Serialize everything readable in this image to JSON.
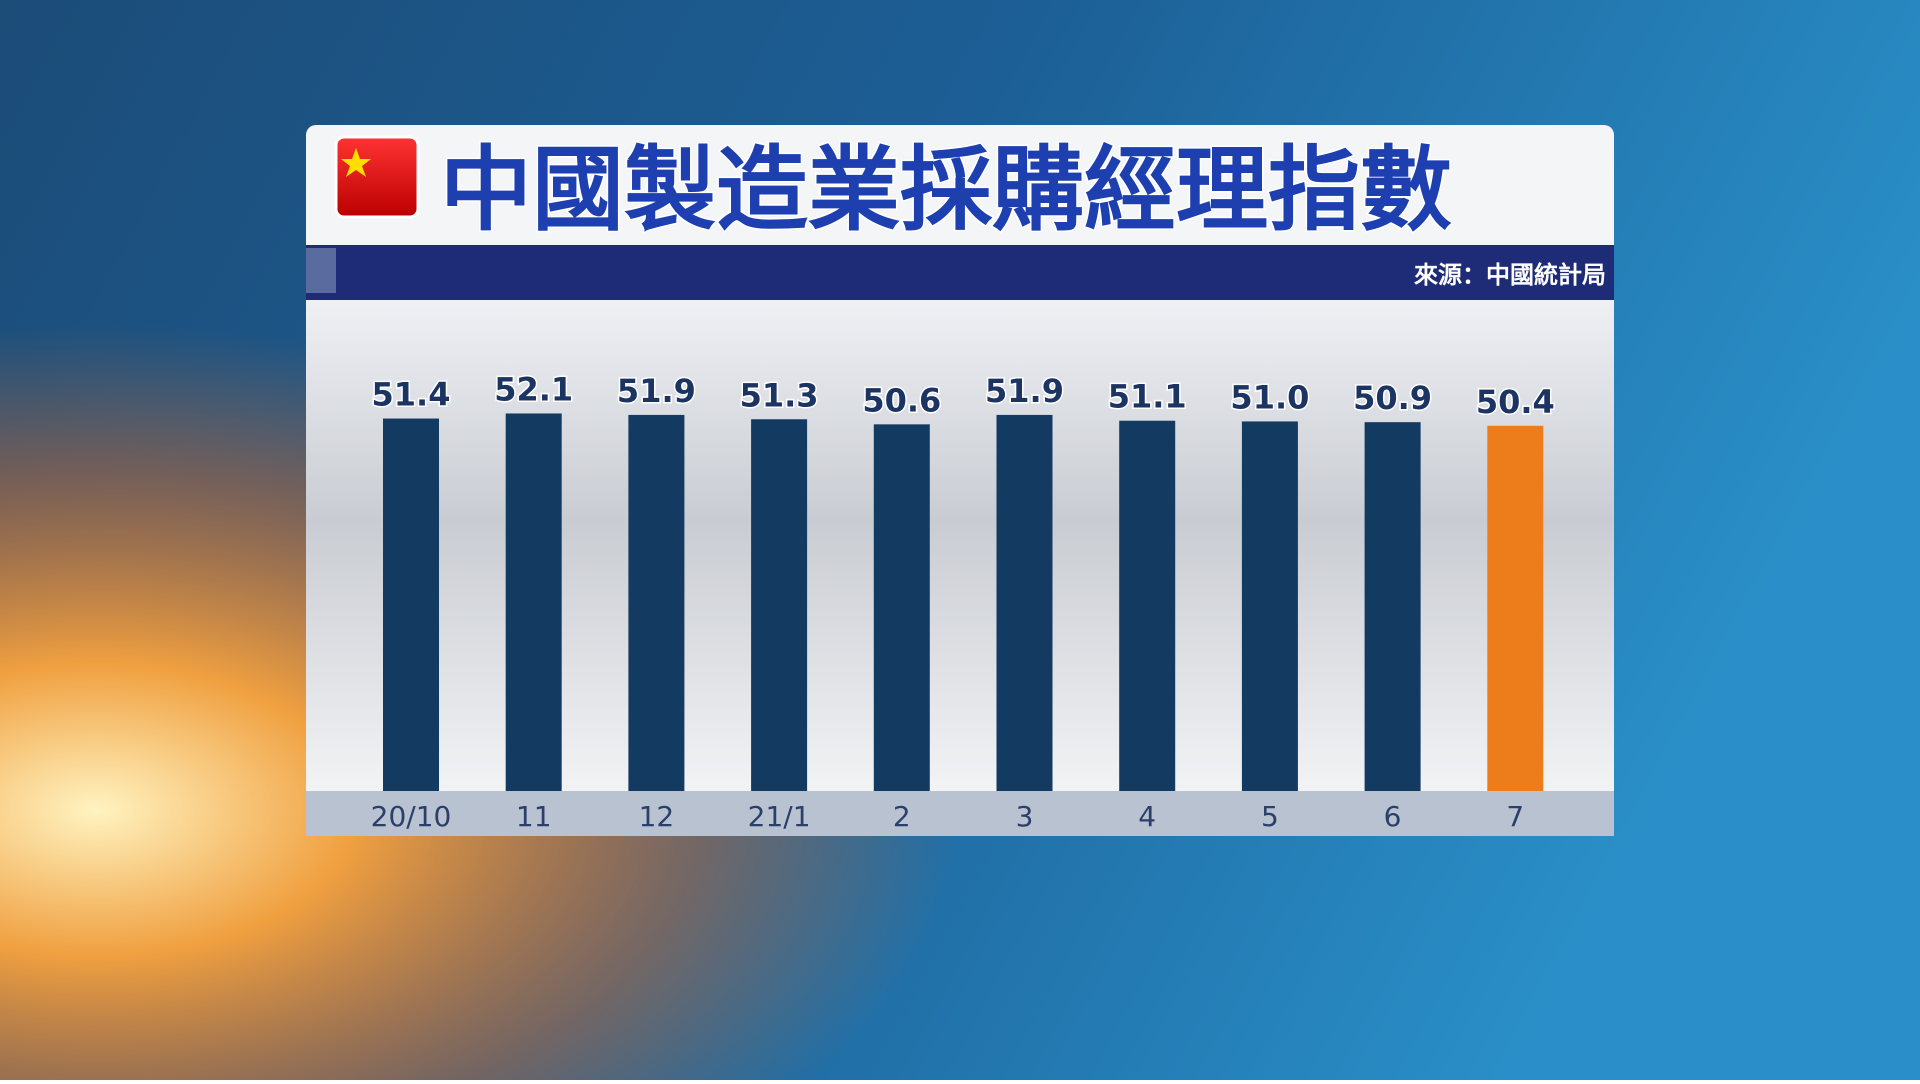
{
  "chart_data": {
    "type": "bar",
    "title": "中國製造業採購經理指數",
    "source": "來源：中國統計局",
    "categories": [
      "20/10",
      "11",
      "12",
      "21/1",
      "2",
      "3",
      "4",
      "5",
      "6",
      "7"
    ],
    "values": [
      51.4,
      52.1,
      51.9,
      51.3,
      50.6,
      51.9,
      51.1,
      51.0,
      50.9,
      50.4
    ],
    "value_labels": [
      "51.4",
      "52.1",
      "51.9",
      "51.3",
      "50.6",
      "51.9",
      "51.1",
      "51.0",
      "50.9",
      "50.4"
    ],
    "colors": [
      "#133a61",
      "#133a61",
      "#133a61",
      "#133a61",
      "#133a61",
      "#133a61",
      "#133a61",
      "#133a61",
      "#133a61",
      "#ec7d1a"
    ],
    "ylim": [
      0,
      65
    ],
    "grid": false
  }
}
